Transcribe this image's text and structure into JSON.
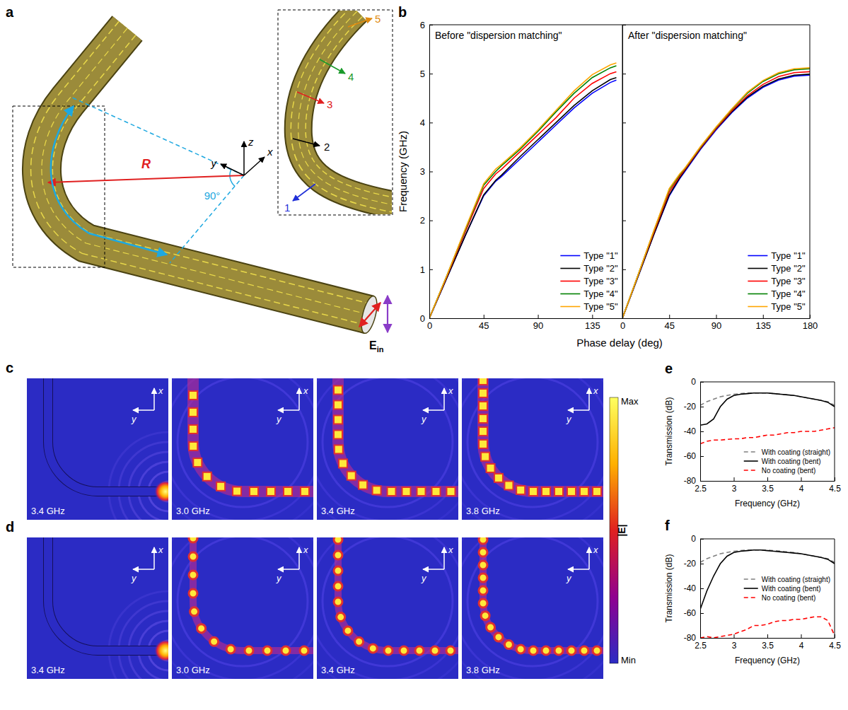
{
  "chart_data": [
    {
      "type": "line",
      "panel_label": "b",
      "title": "Before \"dispersion matching\"",
      "x_label": "Phase delay (deg)",
      "y_label": "Frequency (GHz)",
      "x": [
        0,
        15,
        30,
        45,
        55,
        60,
        75,
        90,
        105,
        120,
        135,
        150,
        155
      ],
      "xlim": [
        0,
        160
      ],
      "xticks": [
        0,
        45,
        90,
        135
      ],
      "ylim": [
        0,
        6
      ],
      "yticks": [
        0,
        1,
        2,
        3,
        4,
        5,
        6
      ],
      "legend": "lower right",
      "series": [
        {
          "name": "Type \"1\"",
          "color": "#0000ff",
          "values": [
            0,
            0.85,
            1.7,
            2.5,
            2.8,
            2.9,
            3.25,
            3.6,
            3.95,
            4.3,
            4.6,
            4.82,
            4.87
          ]
        },
        {
          "name": "Type \"2\"",
          "color": "#000000",
          "values": [
            0,
            0.85,
            1.7,
            2.52,
            2.82,
            2.93,
            3.3,
            3.65,
            4.0,
            4.35,
            4.65,
            4.88,
            4.92
          ]
        },
        {
          "name": "Type \"3\"",
          "color": "#ff0000",
          "values": [
            0,
            0.88,
            1.78,
            2.65,
            2.95,
            3.05,
            3.4,
            3.75,
            4.1,
            4.5,
            4.8,
            5.0,
            5.04
          ]
        },
        {
          "name": "Type \"4\"",
          "color": "#008000",
          "values": [
            0,
            0.9,
            1.82,
            2.72,
            3.0,
            3.12,
            3.45,
            3.82,
            4.22,
            4.6,
            4.92,
            5.12,
            5.16
          ]
        },
        {
          "name": "Type \"5\"",
          "color": "#ffa500",
          "values": [
            0,
            0.9,
            1.84,
            2.75,
            3.05,
            3.15,
            3.48,
            3.85,
            4.25,
            4.65,
            4.98,
            5.18,
            5.22
          ]
        }
      ]
    },
    {
      "type": "line",
      "title": "After \"dispersion matching\"",
      "x": [
        0,
        15,
        30,
        45,
        55,
        60,
        75,
        90,
        105,
        120,
        135,
        150,
        165,
        180
      ],
      "xlim": [
        0,
        180
      ],
      "xticks": [
        0,
        45,
        90,
        135,
        180
      ],
      "ylim": [
        0,
        6
      ],
      "yticks": [
        0,
        1,
        2,
        3,
        4,
        5,
        6
      ],
      "tick_labels": "x",
      "legend": "lower right",
      "series": [
        {
          "name": "Type \"1\"",
          "color": "#0000ff",
          "values": [
            0,
            0.85,
            1.7,
            2.5,
            2.85,
            3.0,
            3.45,
            3.85,
            4.2,
            4.5,
            4.72,
            4.87,
            4.95,
            4.97
          ]
        },
        {
          "name": "Type \"2\"",
          "color": "#000000",
          "values": [
            0,
            0.85,
            1.7,
            2.52,
            2.87,
            3.02,
            3.47,
            3.87,
            4.22,
            4.52,
            4.74,
            4.89,
            4.97,
            4.99
          ]
        },
        {
          "name": "Type \"3\"",
          "color": "#ff0000",
          "values": [
            0,
            0.87,
            1.74,
            2.58,
            2.9,
            3.04,
            3.48,
            3.88,
            4.24,
            4.55,
            4.78,
            4.94,
            5.02,
            5.04
          ]
        },
        {
          "name": "Type \"4\"",
          "color": "#008000",
          "values": [
            0,
            0.88,
            1.77,
            2.63,
            2.93,
            3.06,
            3.5,
            3.9,
            4.27,
            4.6,
            4.84,
            5.0,
            5.08,
            5.1
          ]
        },
        {
          "name": "Type \"5\"",
          "color": "#ffa500",
          "values": [
            0,
            0.88,
            1.78,
            2.65,
            2.95,
            3.07,
            3.51,
            3.91,
            4.28,
            4.62,
            4.86,
            5.02,
            5.1,
            5.12
          ]
        }
      ]
    },
    {
      "type": "line",
      "panel_label": "e",
      "x_label": "Frequency (GHz)",
      "y_label": "Transmission (dB)",
      "x": [
        2.5,
        2.6,
        2.7,
        2.8,
        2.9,
        3.0,
        3.1,
        3.2,
        3.3,
        3.4,
        3.5,
        3.6,
        3.7,
        3.8,
        3.9,
        4.0,
        4.1,
        4.2,
        4.3,
        4.4,
        4.5
      ],
      "xlim": [
        2.5,
        4.5
      ],
      "xticks": [
        2.5,
        3,
        3.5,
        4,
        4.5
      ],
      "ylim": [
        -80,
        0
      ],
      "yticks": [
        -80,
        -60,
        -40,
        -20,
        0
      ],
      "legend": "lower right",
      "series": [
        {
          "name": "With coating (straight)",
          "color": "#808080",
          "line_style": "dashed",
          "values": [
            -19,
            -16,
            -14,
            -12,
            -11,
            -10,
            -9.5,
            -9,
            -9,
            -9,
            -9,
            -9.5,
            -10,
            -10.5,
            -11,
            -12,
            -13,
            -14,
            -15,
            -16,
            -19
          ]
        },
        {
          "name": "With coating (bent)",
          "color": "#000000",
          "line_style": "solid",
          "values": [
            -35,
            -34,
            -30,
            -20,
            -14,
            -11,
            -10,
            -9.5,
            -9,
            -9,
            -9,
            -9.5,
            -10,
            -10.5,
            -11,
            -12,
            -13,
            -14,
            -15,
            -16.5,
            -20
          ]
        },
        {
          "name": "No coating (bent)",
          "color": "#ff0000",
          "line_style": "dashed",
          "values": [
            -50,
            -48,
            -47,
            -47,
            -46.5,
            -46,
            -46,
            -45,
            -45,
            -44,
            -43,
            -43,
            -42,
            -41,
            -41,
            -40,
            -40,
            -40,
            -39,
            -38,
            -37
          ]
        }
      ]
    },
    {
      "type": "line",
      "panel_label": "f",
      "x_label": "Frequency (GHz)",
      "y_label": "Transmission (dB)",
      "x": [
        2.5,
        2.6,
        2.7,
        2.8,
        2.9,
        3.0,
        3.1,
        3.2,
        3.3,
        3.4,
        3.5,
        3.6,
        3.7,
        3.8,
        3.9,
        4.0,
        4.1,
        4.2,
        4.3,
        4.4,
        4.5
      ],
      "xlim": [
        2.5,
        4.5
      ],
      "xticks": [
        2.5,
        3,
        3.5,
        4,
        4.5
      ],
      "ylim": [
        -80,
        0
      ],
      "yticks": [
        -80,
        -60,
        -40,
        -20,
        0
      ],
      "legend": "center right",
      "series": [
        {
          "name": "With coating (straight)",
          "color": "#808080",
          "line_style": "dashed",
          "values": [
            -19,
            -16,
            -14,
            -12,
            -11,
            -10,
            -9.5,
            -9,
            -9,
            -9,
            -9,
            -9.5,
            -10,
            -10.5,
            -11,
            -12,
            -13,
            -14,
            -15,
            -16,
            -19
          ]
        },
        {
          "name": "With coating (bent)",
          "color": "#000000",
          "line_style": "solid",
          "values": [
            -57,
            -42,
            -30,
            -20,
            -14,
            -11,
            -10,
            -9.5,
            -9,
            -9,
            -9.5,
            -10,
            -10.5,
            -11,
            -11.5,
            -12,
            -13,
            -14,
            -15,
            -16.5,
            -20
          ]
        },
        {
          "name": "No coating (bent)",
          "color": "#ff0000",
          "line_style": "dashed",
          "values": [
            -80,
            -79,
            -80,
            -79,
            -78,
            -77,
            -75,
            -73,
            -70,
            -70,
            -69,
            -67,
            -66,
            -66,
            -65,
            -65,
            -64,
            -63,
            -63,
            -66,
            -78
          ]
        }
      ]
    }
  ],
  "diagram": {
    "panel_label": "a",
    "radius_label": "R",
    "angle_label": "90°",
    "axes": {
      "x": "x",
      "y": "y",
      "z": "z"
    },
    "field_label": "E",
    "field_sub": "in",
    "sections": [
      {
        "text": "1",
        "color": "#1f2fd8"
      },
      {
        "text": "2",
        "color": "#000000"
      },
      {
        "text": "3",
        "color": "#e02020"
      },
      {
        "text": "4",
        "color": "#1a9a2a"
      },
      {
        "text": "5",
        "color": "#e08a10"
      }
    ]
  },
  "field_maps": {
    "axis_x": "x",
    "axis_y": "y",
    "rows": [
      {
        "panel_label": "c",
        "frequencies": [
          "3.4 GHz",
          "3.0 GHz",
          "3.4 GHz",
          "3.8 GHz"
        ]
      },
      {
        "panel_label": "d",
        "frequencies": [
          "3.4 GHz",
          "3.0 GHz",
          "3.4 GHz",
          "3.8 GHz"
        ]
      }
    ],
    "colorbar": {
      "max": "Max",
      "min": "Min",
      "label": "|E|"
    }
  }
}
